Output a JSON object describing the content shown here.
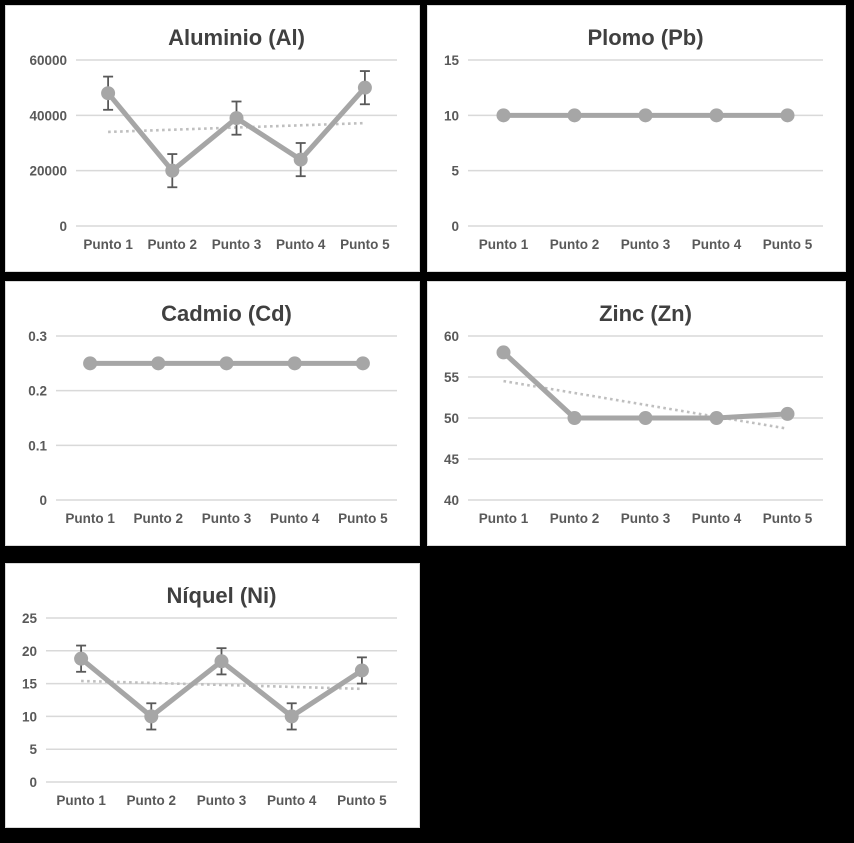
{
  "page": {
    "background": "#000000",
    "description": "Grid of five metal-concentration line charts across five sampling points"
  },
  "colors": {
    "panel_bg": "#ffffff",
    "panel_border": "#d9d9d9",
    "gridline": "#d9d9d9",
    "series_line": "#a6a6a6",
    "marker": "#a6a6a6",
    "error_bar": "#595959",
    "trendline": "#bfbfbf",
    "title_text": "#404040",
    "tick_text": "#595959"
  },
  "chart_data": [
    {
      "type": "line",
      "title": "Aluminio (Al)",
      "categories": [
        "Punto 1",
        "Punto 2",
        "Punto 3",
        "Punto 4",
        "Punto 5"
      ],
      "values": [
        48000,
        20000,
        39000,
        24000,
        50000
      ],
      "error_bars": [
        6000,
        6000,
        6000,
        6000,
        6000
      ],
      "trendline": [
        34000,
        37200
      ],
      "yticks": [
        0,
        20000,
        40000,
        60000
      ],
      "ylim": [
        0,
        60000
      ],
      "grid": true,
      "legend": "none"
    },
    {
      "type": "line",
      "title": "Plomo (Pb)",
      "categories": [
        "Punto 1",
        "Punto 2",
        "Punto 3",
        "Punto 4",
        "Punto 5"
      ],
      "values": [
        10,
        10,
        10,
        10,
        10
      ],
      "error_bars": null,
      "trendline": null,
      "yticks": [
        0,
        5,
        10,
        15
      ],
      "ylim": [
        0,
        15
      ],
      "grid": true,
      "legend": "none"
    },
    {
      "type": "line",
      "title": "Cadmio (Cd)",
      "categories": [
        "Punto 1",
        "Punto 2",
        "Punto 3",
        "Punto 4",
        "Punto 5"
      ],
      "values": [
        0.25,
        0.25,
        0.25,
        0.25,
        0.25
      ],
      "error_bars": null,
      "trendline": null,
      "yticks": [
        0,
        0.1,
        0.2,
        0.3
      ],
      "ylim": [
        0,
        0.3
      ],
      "grid": true,
      "legend": "none"
    },
    {
      "type": "line",
      "title": "Zinc (Zn)",
      "categories": [
        "Punto 1",
        "Punto 2",
        "Punto 3",
        "Punto 4",
        "Punto 5"
      ],
      "values": [
        58,
        50,
        50,
        50,
        50.5
      ],
      "error_bars": null,
      "trendline": [
        54.5,
        48.7
      ],
      "yticks": [
        40,
        45,
        50,
        55,
        60
      ],
      "ylim": [
        40,
        60
      ],
      "grid": true,
      "legend": "none"
    },
    {
      "type": "line",
      "title": "Níquel (Ni)",
      "categories": [
        "Punto 1",
        "Punto 2",
        "Punto 3",
        "Punto 4",
        "Punto 5"
      ],
      "values": [
        18.8,
        10,
        18.4,
        10,
        17
      ],
      "error_bars": [
        2,
        2,
        2,
        2,
        2
      ],
      "trendline": [
        15.4,
        14.2
      ],
      "yticks": [
        0,
        5,
        10,
        15,
        20,
        25
      ],
      "ylim": [
        0,
        25
      ],
      "grid": true,
      "legend": "none"
    }
  ]
}
